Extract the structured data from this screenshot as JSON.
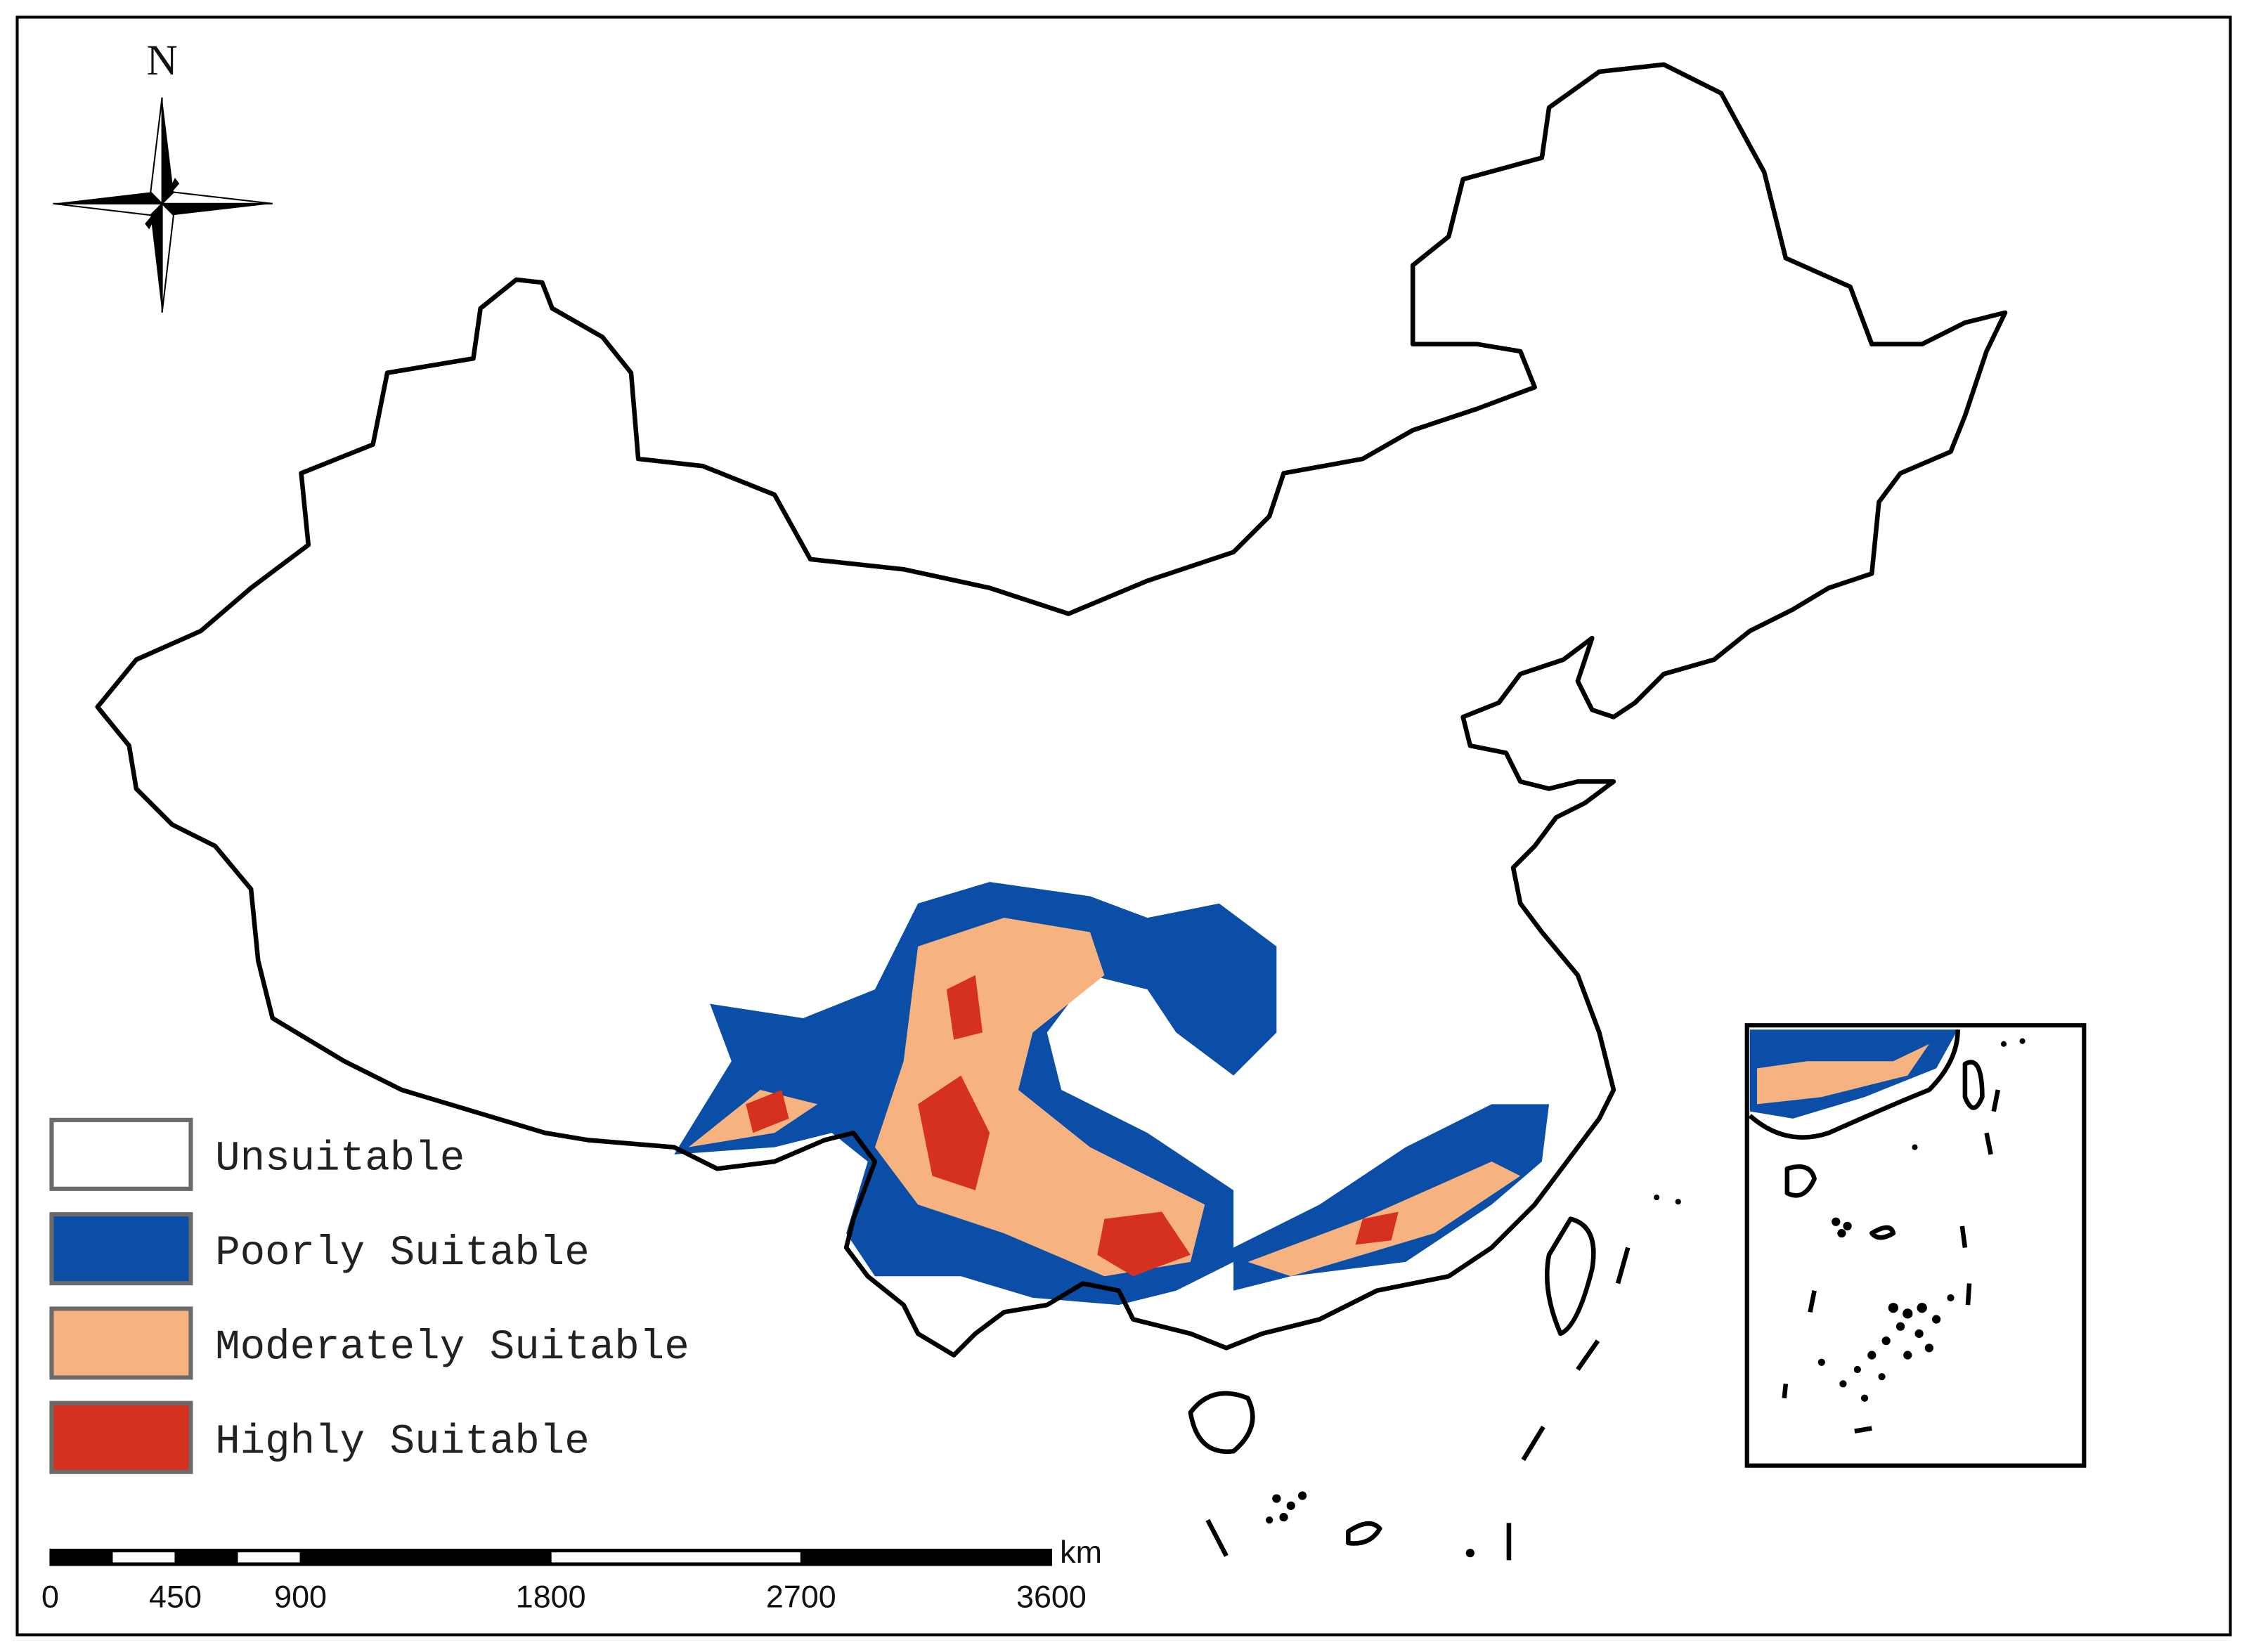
{
  "north_label": "N",
  "legend": {
    "items": [
      {
        "label": "Unsuitable",
        "color": "#ffffff"
      },
      {
        "label": "Poorly Suitable",
        "color": "#0a4ea8"
      },
      {
        "label": "Moderately Suitable",
        "color": "#f6b27f"
      },
      {
        "label": "Highly Suitable",
        "color": "#d6301e"
      }
    ]
  },
  "scale_bar": {
    "ticks": [
      0,
      450,
      900,
      1800,
      2700,
      3600
    ],
    "unit": "km"
  }
}
